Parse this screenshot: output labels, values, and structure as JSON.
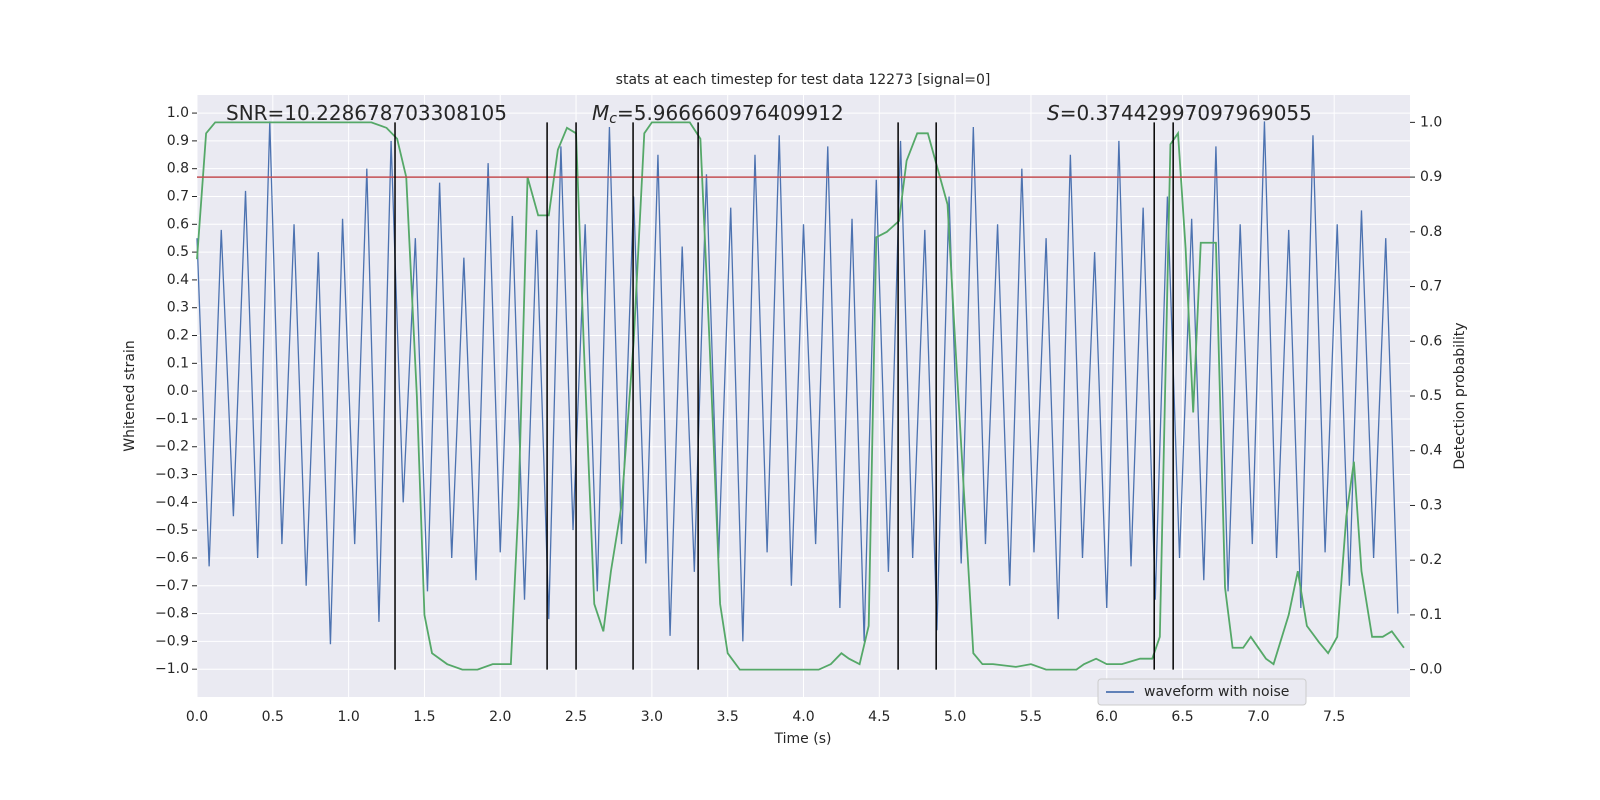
{
  "chart_data": {
    "type": "line",
    "title": "stats at each timestep for test data 12273 [signal=0]",
    "xlabel": "Time (s)",
    "ylabel": "Whitened strain",
    "y2label": "Detection probability",
    "grid": true,
    "legend": "lower right",
    "xlim": [
      0,
      8.0
    ],
    "xticks": [
      {
        "value": 0,
        "label": "0.0"
      },
      0.5,
      {
        "value": 1,
        "label": "1.0"
      },
      1.5,
      {
        "value": 2,
        "label": "2.0"
      },
      2.5,
      {
        "value": 3,
        "label": "3.0"
      },
      3.5,
      {
        "value": 4,
        "label": "4.0"
      },
      4.5,
      {
        "value": 5,
        "label": "5.0"
      },
      5.5,
      {
        "value": 6,
        "label": "6.0"
      },
      6.5,
      {
        "value": 7,
        "label": "7.0"
      },
      7.5
    ],
    "ylim": [
      -1.1,
      1.065
    ],
    "yticks": [
      {
        "value": -1,
        "label": "−1.0"
      },
      {
        "value": -0.9,
        "label": "−0.9"
      },
      {
        "value": -0.8,
        "label": "−0.8"
      },
      {
        "value": -0.7,
        "label": "−0.7"
      },
      {
        "value": -0.6,
        "label": "−0.6"
      },
      {
        "value": -0.5,
        "label": "−0.5"
      },
      {
        "value": -0.4,
        "label": "−0.4"
      },
      {
        "value": -0.3,
        "label": "−0.3"
      },
      {
        "value": -0.2,
        "label": "−0.2"
      },
      {
        "value": -0.1,
        "label": "−0.1"
      },
      {
        "value": 0,
        "label": "0.0"
      },
      0.1,
      0.2,
      0.3,
      0.4,
      0.5,
      0.6,
      0.7,
      0.8,
      0.9,
      {
        "value": 1,
        "label": "1.0"
      }
    ],
    "y2lim": [
      -0.05,
      1.05
    ],
    "y2ticks": [
      {
        "value": 0,
        "label": "0.0"
      },
      0.1,
      0.2,
      0.3,
      0.4,
      0.5,
      0.6,
      0.7,
      0.8,
      0.9,
      {
        "value": 1,
        "label": "1.0"
      }
    ],
    "series": [
      {
        "name": "waveform with noise",
        "color": "#4c72b0",
        "x": [
          0.0,
          0.08,
          0.16,
          0.24,
          0.32,
          0.4,
          0.48,
          0.56,
          0.64,
          0.72,
          0.8,
          0.88,
          0.96,
          1.04,
          1.12,
          1.2,
          1.28,
          1.36,
          1.44,
          1.52,
          1.6,
          1.68,
          1.76,
          1.84,
          1.92,
          2.0,
          2.08,
          2.16,
          2.24,
          2.32,
          2.4,
          2.48,
          2.56,
          2.64,
          2.72,
          2.8,
          2.88,
          2.96,
          3.04,
          3.12,
          3.2,
          3.28,
          3.36,
          3.44,
          3.52,
          3.6,
          3.68,
          3.76,
          3.84,
          3.92,
          4.0,
          4.08,
          4.16,
          4.24,
          4.32,
          4.4,
          4.48,
          4.56,
          4.64,
          4.72,
          4.8,
          4.88,
          4.96,
          5.04,
          5.12,
          5.2,
          5.28,
          5.36,
          5.44,
          5.52,
          5.6,
          5.68,
          5.76,
          5.84,
          5.92,
          6.0,
          6.08,
          6.16,
          6.24,
          6.32,
          6.4,
          6.48,
          6.56,
          6.64,
          6.72,
          6.8,
          6.88,
          6.96,
          7.04,
          7.12,
          7.2,
          7.28,
          7.36,
          7.44,
          7.52,
          7.6,
          7.68,
          7.76,
          7.84,
          7.92
        ],
        "values": [
          0.55,
          -0.63,
          0.58,
          -0.45,
          0.72,
          -0.6,
          0.97,
          -0.55,
          0.6,
          -0.7,
          0.5,
          -0.91,
          0.62,
          -0.55,
          0.8,
          -0.83,
          0.9,
          -0.4,
          0.55,
          -0.72,
          0.75,
          -0.6,
          0.48,
          -0.68,
          0.82,
          -0.58,
          0.63,
          -0.75,
          0.58,
          -0.82,
          0.88,
          -0.5,
          0.6,
          -0.72,
          0.95,
          -0.55,
          0.7,
          -0.62,
          0.85,
          -0.88,
          0.52,
          -0.65,
          0.78,
          -0.6,
          0.66,
          -0.9,
          0.85,
          -0.58,
          0.92,
          -0.7,
          0.6,
          -0.55,
          0.88,
          -0.78,
          0.62,
          -0.9,
          0.76,
          -0.65,
          0.9,
          -0.6,
          0.58,
          -0.86,
          0.7,
          -0.62,
          0.95,
          -0.55,
          0.6,
          -0.7,
          0.8,
          -0.58,
          0.55,
          -0.82,
          0.85,
          -0.6,
          0.5,
          -0.78,
          0.9,
          -0.63,
          0.66,
          -0.75,
          0.7,
          -0.6,
          0.62,
          -0.68,
          0.88,
          -0.72,
          0.6,
          -0.55,
          0.97,
          -0.6,
          0.58,
          -0.78,
          0.92,
          -0.58,
          0.6,
          -0.7,
          0.65,
          -0.6,
          0.55,
          -0.8
        ]
      },
      {
        "color": "#55a868",
        "axis": "y2",
        "x": [
          0.0,
          0.06,
          0.12,
          0.5,
          1.0,
          1.15,
          1.25,
          1.32,
          1.38,
          1.45,
          1.5,
          1.55,
          1.65,
          1.75,
          1.85,
          1.95,
          2.07,
          2.12,
          2.18,
          2.25,
          2.32,
          2.38,
          2.44,
          2.5,
          2.55,
          2.62,
          2.68,
          2.73,
          2.8,
          2.88,
          2.95,
          3.0,
          3.25,
          3.32,
          3.38,
          3.45,
          3.5,
          3.58,
          4.1,
          4.18,
          4.25,
          4.3,
          4.37,
          4.43,
          4.48,
          4.55,
          4.63,
          4.68,
          4.75,
          4.82,
          4.9,
          4.95,
          5.0,
          5.12,
          5.18,
          5.25,
          5.4,
          5.5,
          5.6,
          5.8,
          5.85,
          5.93,
          6.0,
          6.1,
          6.22,
          6.3,
          6.35,
          6.42,
          6.47,
          6.52,
          6.57,
          6.62,
          6.72,
          6.78,
          6.83,
          6.9,
          6.95,
          7.05,
          7.1,
          7.2,
          7.26,
          7.32,
          7.4,
          7.46,
          7.52,
          7.58,
          7.63,
          7.68,
          7.75,
          7.82,
          7.88,
          7.96
        ],
        "values": [
          0.75,
          0.98,
          1.0,
          1.0,
          1.0,
          1.0,
          0.99,
          0.97,
          0.9,
          0.5,
          0.1,
          0.03,
          0.01,
          0.0,
          0.0,
          0.01,
          0.01,
          0.3,
          0.9,
          0.83,
          0.83,
          0.95,
          0.99,
          0.98,
          0.6,
          0.12,
          0.07,
          0.18,
          0.3,
          0.6,
          0.98,
          1.0,
          1.0,
          0.97,
          0.6,
          0.12,
          0.03,
          0.0,
          0.0,
          0.01,
          0.03,
          0.02,
          0.01,
          0.08,
          0.79,
          0.8,
          0.82,
          0.93,
          0.98,
          0.98,
          0.9,
          0.85,
          0.6,
          0.03,
          0.01,
          0.01,
          0.005,
          0.01,
          0.0,
          0.0,
          0.01,
          0.02,
          0.01,
          0.01,
          0.02,
          0.02,
          0.06,
          0.96,
          0.98,
          0.77,
          0.47,
          0.78,
          0.78,
          0.15,
          0.04,
          0.04,
          0.06,
          0.02,
          0.01,
          0.1,
          0.18,
          0.08,
          0.05,
          0.03,
          0.06,
          0.28,
          0.38,
          0.18,
          0.06,
          0.06,
          0.07,
          0.04
        ]
      }
    ],
    "hline": {
      "value": 0.9,
      "axis": "y2",
      "color": "#c44e52"
    },
    "vlines": {
      "x": [
        1.306,
        2.309,
        2.5,
        2.876,
        3.305,
        4.624,
        4.875,
        6.313,
        6.438
      ],
      "ymin": 0,
      "ymax": 1,
      "axis": "y2",
      "color": "#000000"
    },
    "annotations": [
      {
        "text": "SNR=10.228678703308105"
      },
      {
        "symbol": "M",
        "sub": "c",
        "text": "=5.966660976409912"
      },
      {
        "symbol": "S",
        "text": "=0.37442997097969055"
      }
    ]
  }
}
